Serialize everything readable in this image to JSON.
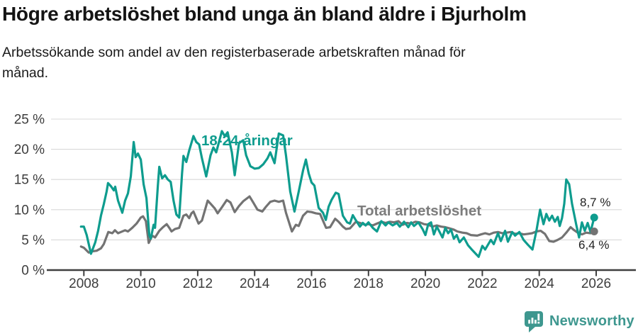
{
  "header": {
    "title": "Högre arbetslöshet bland unga än bland äldre i Bjurholm",
    "subtitle": "Arbetssökande som andel av den registerbaserade arbetskraften månad för månad."
  },
  "colors": {
    "teal": "#0e9c8e",
    "gray": "#737373",
    "gray_label": "#7d7d7d",
    "grid": "#d9d9d9",
    "axis": "#3f3f3f",
    "axis_text": "#3d3d3d",
    "brand": "#3e978f"
  },
  "chart_data": {
    "type": "line",
    "title": "Högre arbetslöshet bland unga än bland äldre i Bjurholm",
    "subtitle": "Arbetssökande som andel av den registerbaserade arbetskraften månad för månad.",
    "unit": "%",
    "grid": true,
    "legend_position": "inline-labels",
    "x_axis": {
      "ticks": [
        2008,
        2010,
        2012,
        2014,
        2016,
        2018,
        2020,
        2022,
        2024,
        2026
      ],
      "range": [
        2007.8,
        2026.9
      ]
    },
    "y_axis": {
      "tick_values": [
        0,
        5,
        10,
        15,
        20,
        25
      ],
      "tick_labels": [
        "0 %",
        "5 %",
        "10 %",
        "15 %",
        "20 %",
        "25 %"
      ],
      "range": [
        0,
        25
      ]
    },
    "series": [
      {
        "name": "18-24-åringar",
        "color": "#0e9c8e",
        "end_label": "8,7 %",
        "end_value": 8.7,
        "points": [
          [
            2007.9,
            7.2
          ],
          [
            2008.0,
            7.2
          ],
          [
            2008.1,
            5.8
          ],
          [
            2008.25,
            2.7
          ],
          [
            2008.4,
            4.6
          ],
          [
            2008.5,
            6.5
          ],
          [
            2008.6,
            9.0
          ],
          [
            2008.7,
            10.9
          ],
          [
            2008.8,
            13.0
          ],
          [
            2008.85,
            14.4
          ],
          [
            2008.95,
            13.9
          ],
          [
            2009.05,
            13.2
          ],
          [
            2009.1,
            13.8
          ],
          [
            2009.2,
            11.5
          ],
          [
            2009.35,
            9.5
          ],
          [
            2009.45,
            11.5
          ],
          [
            2009.55,
            12.7
          ],
          [
            2009.65,
            15.5
          ],
          [
            2009.75,
            21.2
          ],
          [
            2009.82,
            18.7
          ],
          [
            2009.9,
            19.3
          ],
          [
            2010.0,
            18.3
          ],
          [
            2010.1,
            14.2
          ],
          [
            2010.2,
            11.9
          ],
          [
            2010.3,
            5.8
          ],
          [
            2010.35,
            5.2
          ],
          [
            2010.45,
            7.5
          ],
          [
            2010.5,
            7.0
          ],
          [
            2010.6,
            14.0
          ],
          [
            2010.65,
            17.1
          ],
          [
            2010.75,
            15.2
          ],
          [
            2010.85,
            15.7
          ],
          [
            2010.95,
            15.0
          ],
          [
            2011.05,
            14.6
          ],
          [
            2011.15,
            11.5
          ],
          [
            2011.25,
            9.2
          ],
          [
            2011.35,
            8.7
          ],
          [
            2011.45,
            16.0
          ],
          [
            2011.5,
            18.9
          ],
          [
            2011.6,
            17.9
          ],
          [
            2011.7,
            19.8
          ],
          [
            2011.85,
            22.2
          ],
          [
            2011.95,
            21.2
          ],
          [
            2012.05,
            20.8
          ],
          [
            2012.15,
            18.5
          ],
          [
            2012.3,
            15.5
          ],
          [
            2012.45,
            19.0
          ],
          [
            2012.55,
            20.3
          ],
          [
            2012.65,
            19.5
          ],
          [
            2012.85,
            23.0
          ],
          [
            2012.95,
            22.2
          ],
          [
            2013.05,
            22.8
          ],
          [
            2013.2,
            19.5
          ],
          [
            2013.3,
            15.7
          ],
          [
            2013.45,
            21.0
          ],
          [
            2013.6,
            21.5
          ],
          [
            2013.7,
            19.0
          ],
          [
            2013.85,
            17.2
          ],
          [
            2014.0,
            16.8
          ],
          [
            2014.15,
            16.9
          ],
          [
            2014.3,
            17.5
          ],
          [
            2014.45,
            18.5
          ],
          [
            2014.55,
            19.5
          ],
          [
            2014.7,
            17.7
          ],
          [
            2014.85,
            22.6
          ],
          [
            2015.0,
            22.3
          ],
          [
            2015.1,
            19.0
          ],
          [
            2015.25,
            13.0
          ],
          [
            2015.4,
            9.7
          ],
          [
            2015.55,
            13.0
          ],
          [
            2015.7,
            16.5
          ],
          [
            2015.8,
            18.3
          ],
          [
            2015.9,
            16.0
          ],
          [
            2016.0,
            14.5
          ],
          [
            2016.1,
            14.0
          ],
          [
            2016.25,
            10.3
          ],
          [
            2016.4,
            9.5
          ],
          [
            2016.5,
            8.3
          ],
          [
            2016.6,
            10.5
          ],
          [
            2016.7,
            11.6
          ],
          [
            2016.85,
            12.8
          ],
          [
            2016.95,
            12.6
          ],
          [
            2017.1,
            9.0
          ],
          [
            2017.25,
            7.9
          ],
          [
            2017.35,
            7.7
          ],
          [
            2017.45,
            9.1
          ],
          [
            2017.55,
            8.3
          ],
          [
            2017.7,
            7.2
          ],
          [
            2017.8,
            7.8
          ],
          [
            2017.9,
            7.4
          ],
          [
            2018.0,
            7.9
          ],
          [
            2018.15,
            7.0
          ],
          [
            2018.3,
            6.4
          ],
          [
            2018.45,
            8.1
          ],
          [
            2018.6,
            7.4
          ],
          [
            2018.7,
            7.9
          ],
          [
            2018.85,
            7.4
          ],
          [
            2019.0,
            7.8
          ],
          [
            2019.1,
            7.2
          ],
          [
            2019.25,
            8.0
          ],
          [
            2019.4,
            7.1
          ],
          [
            2019.5,
            7.9
          ],
          [
            2019.6,
            7.3
          ],
          [
            2019.75,
            7.9
          ],
          [
            2019.9,
            6.8
          ],
          [
            2020.0,
            5.8
          ],
          [
            2020.1,
            7.6
          ],
          [
            2020.2,
            7.9
          ],
          [
            2020.3,
            5.9
          ],
          [
            2020.4,
            7.2
          ],
          [
            2020.6,
            5.4
          ],
          [
            2020.7,
            7.0
          ],
          [
            2020.8,
            6.1
          ],
          [
            2020.9,
            6.7
          ],
          [
            2021.0,
            5.2
          ],
          [
            2021.1,
            5.8
          ],
          [
            2021.2,
            4.6
          ],
          [
            2021.35,
            5.4
          ],
          [
            2021.5,
            4.1
          ],
          [
            2021.65,
            3.3
          ],
          [
            2021.87,
            2.2
          ],
          [
            2022.0,
            4.0
          ],
          [
            2022.1,
            3.4
          ],
          [
            2022.3,
            5.0
          ],
          [
            2022.4,
            4.3
          ],
          [
            2022.55,
            6.1
          ],
          [
            2022.65,
            4.8
          ],
          [
            2022.8,
            6.5
          ],
          [
            2022.9,
            4.7
          ],
          [
            2023.05,
            6.3
          ],
          [
            2023.15,
            5.7
          ],
          [
            2023.3,
            6.3
          ],
          [
            2023.45,
            5.0
          ],
          [
            2023.6,
            4.2
          ],
          [
            2023.76,
            3.4
          ],
          [
            2023.9,
            6.5
          ],
          [
            2024.03,
            10.0
          ],
          [
            2024.15,
            7.6
          ],
          [
            2024.25,
            9.3
          ],
          [
            2024.35,
            8.2
          ],
          [
            2024.45,
            9.0
          ],
          [
            2024.55,
            8.0
          ],
          [
            2024.65,
            8.8
          ],
          [
            2024.72,
            7.3
          ],
          [
            2024.8,
            8.6
          ],
          [
            2024.88,
            11.0
          ],
          [
            2024.95,
            15.0
          ],
          [
            2025.05,
            14.2
          ],
          [
            2025.15,
            11.0
          ],
          [
            2025.3,
            7.5
          ],
          [
            2025.4,
            5.4
          ],
          [
            2025.5,
            7.9
          ],
          [
            2025.6,
            6.5
          ],
          [
            2025.7,
            7.8
          ],
          [
            2025.8,
            6.3
          ],
          [
            2025.93,
            8.7
          ]
        ]
      },
      {
        "name": "Total arbetslöshet",
        "color": "#737373",
        "end_label": "6,4 %",
        "end_value": 6.4,
        "points": [
          [
            2007.9,
            3.9
          ],
          [
            2008.0,
            3.7
          ],
          [
            2008.17,
            2.9
          ],
          [
            2008.3,
            3.1
          ],
          [
            2008.45,
            3.2
          ],
          [
            2008.6,
            3.6
          ],
          [
            2008.7,
            4.3
          ],
          [
            2008.86,
            6.3
          ],
          [
            2009.0,
            6.1
          ],
          [
            2009.09,
            6.6
          ],
          [
            2009.2,
            6.1
          ],
          [
            2009.3,
            6.3
          ],
          [
            2009.45,
            6.6
          ],
          [
            2009.55,
            6.4
          ],
          [
            2009.7,
            7.0
          ],
          [
            2009.85,
            7.7
          ],
          [
            2010.0,
            8.7
          ],
          [
            2010.08,
            8.9
          ],
          [
            2010.18,
            8.1
          ],
          [
            2010.28,
            4.5
          ],
          [
            2010.4,
            5.7
          ],
          [
            2010.5,
            5.4
          ],
          [
            2010.65,
            6.5
          ],
          [
            2010.78,
            7.1
          ],
          [
            2010.91,
            7.6
          ],
          [
            2011.0,
            7.0
          ],
          [
            2011.08,
            6.4
          ],
          [
            2011.2,
            6.8
          ],
          [
            2011.35,
            7.0
          ],
          [
            2011.5,
            9.0
          ],
          [
            2011.6,
            9.2
          ],
          [
            2011.7,
            8.6
          ],
          [
            2011.78,
            9.4
          ],
          [
            2011.85,
            9.7
          ],
          [
            2012.03,
            7.7
          ],
          [
            2012.15,
            8.2
          ],
          [
            2012.35,
            11.5
          ],
          [
            2012.45,
            11.0
          ],
          [
            2012.6,
            10.2
          ],
          [
            2012.7,
            9.4
          ],
          [
            2012.85,
            10.4
          ],
          [
            2013.02,
            11.6
          ],
          [
            2013.15,
            11.2
          ],
          [
            2013.3,
            9.6
          ],
          [
            2013.45,
            10.6
          ],
          [
            2013.6,
            11.4
          ],
          [
            2013.82,
            12.2
          ],
          [
            2013.95,
            11.2
          ],
          [
            2014.1,
            10.0
          ],
          [
            2014.27,
            9.7
          ],
          [
            2014.4,
            10.5
          ],
          [
            2014.55,
            11.3
          ],
          [
            2014.7,
            11.5
          ],
          [
            2014.85,
            11.3
          ],
          [
            2015.0,
            11.5
          ],
          [
            2015.1,
            9.5
          ],
          [
            2015.31,
            6.4
          ],
          [
            2015.45,
            7.5
          ],
          [
            2015.55,
            7.3
          ],
          [
            2015.7,
            9.0
          ],
          [
            2015.85,
            9.7
          ],
          [
            2016.0,
            9.6
          ],
          [
            2016.15,
            9.4
          ],
          [
            2016.3,
            9.3
          ],
          [
            2016.51,
            7.0
          ],
          [
            2016.65,
            7.1
          ],
          [
            2016.83,
            8.5
          ],
          [
            2016.95,
            8.0
          ],
          [
            2017.1,
            7.2
          ],
          [
            2017.21,
            6.8
          ],
          [
            2017.35,
            6.9
          ],
          [
            2017.56,
            8.0
          ],
          [
            2017.7,
            7.8
          ],
          [
            2017.88,
            7.5
          ],
          [
            2018.0,
            7.6
          ],
          [
            2018.15,
            7.4
          ],
          [
            2018.3,
            7.7
          ],
          [
            2018.45,
            8.0
          ],
          [
            2018.6,
            7.8
          ],
          [
            2018.75,
            8.0
          ],
          [
            2018.9,
            7.9
          ],
          [
            2019.05,
            8.1
          ],
          [
            2019.2,
            7.5
          ],
          [
            2019.35,
            7.8
          ],
          [
            2019.5,
            7.7
          ],
          [
            2019.65,
            8.0
          ],
          [
            2019.8,
            7.9
          ],
          [
            2019.95,
            7.6
          ],
          [
            2020.1,
            7.5
          ],
          [
            2020.25,
            7.2
          ],
          [
            2020.4,
            7.4
          ],
          [
            2020.55,
            7.2
          ],
          [
            2020.7,
            7.1
          ],
          [
            2020.85,
            6.9
          ],
          [
            2021.0,
            6.7
          ],
          [
            2021.12,
            6.4
          ],
          [
            2021.3,
            6.2
          ],
          [
            2021.45,
            6.1
          ],
          [
            2021.6,
            5.8
          ],
          [
            2021.82,
            5.7
          ],
          [
            2021.95,
            5.9
          ],
          [
            2022.1,
            6.1
          ],
          [
            2022.25,
            5.9
          ],
          [
            2022.4,
            6.2
          ],
          [
            2022.55,
            6.3
          ],
          [
            2022.7,
            6.1
          ],
          [
            2022.85,
            6.2
          ],
          [
            2023.0,
            6.3
          ],
          [
            2023.15,
            6.0
          ],
          [
            2023.3,
            6.1
          ],
          [
            2023.45,
            5.9
          ],
          [
            2023.6,
            6.0
          ],
          [
            2023.75,
            6.1
          ],
          [
            2023.9,
            6.4
          ],
          [
            2024.05,
            6.5
          ],
          [
            2024.2,
            6.0
          ],
          [
            2024.35,
            4.8
          ],
          [
            2024.5,
            4.7
          ],
          [
            2024.65,
            5.0
          ],
          [
            2024.8,
            5.4
          ],
          [
            2024.95,
            6.2
          ],
          [
            2025.1,
            7.1
          ],
          [
            2025.2,
            6.7
          ],
          [
            2025.35,
            6.2
          ],
          [
            2025.5,
            5.9
          ],
          [
            2025.65,
            6.2
          ],
          [
            2025.8,
            6.1
          ],
          [
            2025.93,
            6.4
          ]
        ]
      }
    ]
  },
  "footer": {
    "brand": "Newsworthy",
    "brand_color": "#3e978f",
    "icon": "newsworthy-bars-icon"
  }
}
